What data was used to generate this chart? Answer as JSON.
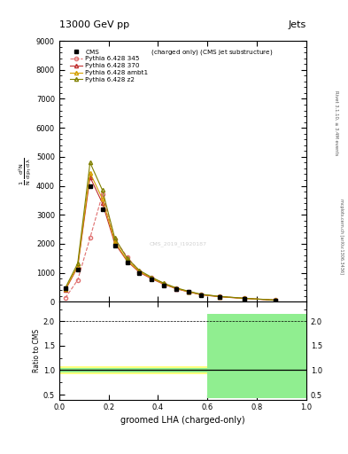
{
  "title_top": "13000 GeV pp",
  "title_right": "Jets",
  "right_label1": "Rivet 3.1.10, ≥ 3.4M events",
  "right_label2": "mcplots.cern.ch [arXiv:1306.3436]",
  "watermark": "CMS_2019_I1920187",
  "xlabel": "groomed LHA (charged-only)",
  "ratio_ylabel": "Ratio to CMS",
  "xlim": [
    0,
    1
  ],
  "ylim_main": [
    0,
    9000
  ],
  "ylim_ratio": [
    0.4,
    2.4
  ],
  "yticks_main": [
    0,
    1000,
    2000,
    3000,
    4000,
    5000,
    6000,
    7000,
    8000,
    9000
  ],
  "cms_x": [
    0.025,
    0.075,
    0.125,
    0.175,
    0.225,
    0.275,
    0.325,
    0.375,
    0.425,
    0.475,
    0.525,
    0.575,
    0.65,
    0.75,
    0.875
  ],
  "cms_y": [
    480,
    1100,
    4000,
    3200,
    1950,
    1350,
    980,
    760,
    570,
    430,
    330,
    230,
    160,
    100,
    45
  ],
  "p345_x": [
    0.025,
    0.075,
    0.125,
    0.175,
    0.225,
    0.275,
    0.325,
    0.375,
    0.425,
    0.475,
    0.525,
    0.575,
    0.65,
    0.75,
    0.875
  ],
  "p345_y": [
    130,
    750,
    2200,
    3700,
    2150,
    1550,
    1050,
    820,
    625,
    460,
    345,
    248,
    178,
    118,
    55
  ],
  "p370_x": [
    0.025,
    0.075,
    0.125,
    0.175,
    0.225,
    0.275,
    0.325,
    0.375,
    0.425,
    0.475,
    0.525,
    0.575,
    0.65,
    0.75,
    0.875
  ],
  "p370_y": [
    400,
    1200,
    4300,
    3400,
    2020,
    1400,
    1010,
    790,
    595,
    445,
    335,
    238,
    170,
    112,
    52
  ],
  "pambt1_x": [
    0.025,
    0.075,
    0.125,
    0.175,
    0.225,
    0.275,
    0.325,
    0.375,
    0.425,
    0.475,
    0.525,
    0.575,
    0.65,
    0.75,
    0.875
  ],
  "pambt1_y": [
    430,
    1230,
    4450,
    3550,
    2080,
    1430,
    1040,
    810,
    610,
    455,
    342,
    245,
    175,
    115,
    54
  ],
  "pz2_x": [
    0.025,
    0.075,
    0.125,
    0.175,
    0.225,
    0.275,
    0.325,
    0.375,
    0.425,
    0.475,
    0.525,
    0.575,
    0.65,
    0.75,
    0.875
  ],
  "pz2_y": [
    480,
    1320,
    4800,
    3850,
    2200,
    1500,
    1080,
    840,
    635,
    475,
    358,
    258,
    183,
    120,
    57
  ],
  "cms_color": "#000000",
  "p345_color": "#e07070",
  "p370_color": "#c03030",
  "pambt1_color": "#d4a000",
  "pz2_color": "#808000",
  "ratio_bins": [
    0.0,
    0.6,
    0.7,
    1.0
  ],
  "ratio_green_lo": [
    0.95,
    0.42,
    0.42
  ],
  "ratio_green_hi": [
    1.05,
    2.15,
    2.15
  ],
  "ratio_yellow_lo": [
    0.92,
    0.68,
    0.68
  ],
  "ratio_yellow_hi": [
    1.08,
    1.35,
    1.35
  ],
  "green_color": "#90ee90",
  "yellow_color": "#ffff80"
}
